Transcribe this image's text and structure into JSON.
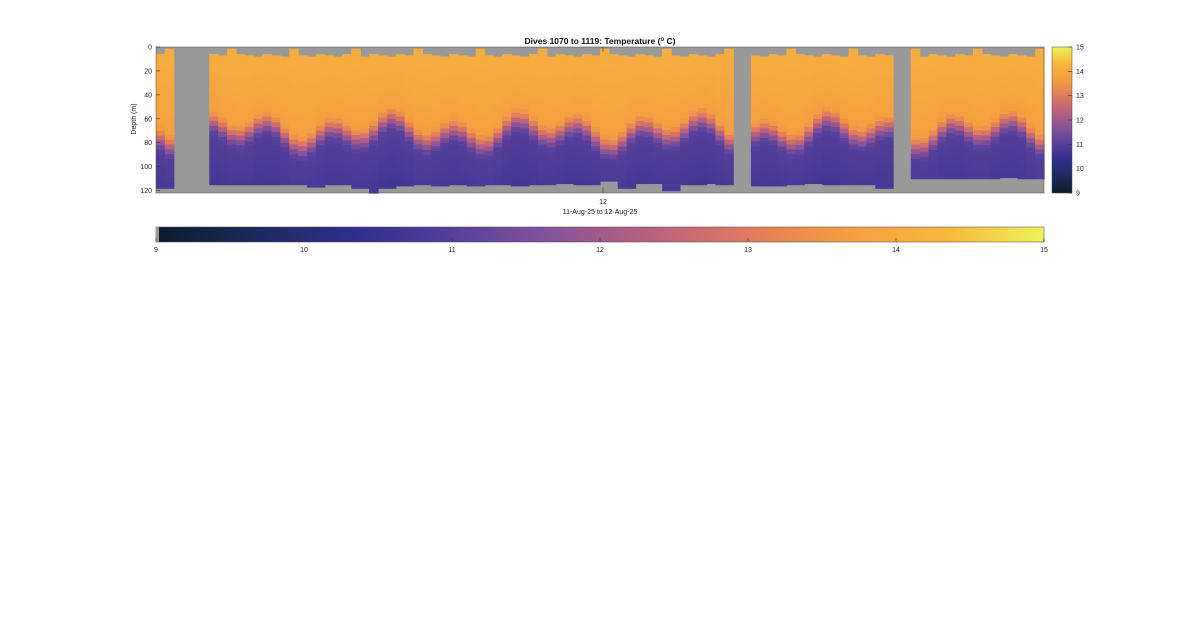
{
  "chart_data": {
    "type": "heatmap",
    "title_main": "Dives 1070 to 1119: Temperature (",
    "title_sup": "o",
    "title_end": " C)",
    "ylabel": "Depth (m)",
    "xlabel": "11-Aug-25 to 12-Aug-25",
    "x_tick_labels": [
      "12"
    ],
    "y_ticks": [
      0,
      20,
      40,
      60,
      80,
      100,
      120
    ],
    "ylim": [
      0,
      122
    ],
    "y_reversed": true,
    "colorbar_range": [
      9,
      15
    ],
    "colorbar_ticks": [
      9,
      10,
      11,
      12,
      13,
      14,
      15
    ],
    "colormap": [
      "#0b1d2e",
      "#1b2a5a",
      "#2f2e8c",
      "#553f9a",
      "#87539a",
      "#b9617e",
      "#e07a5f",
      "#f59e42",
      "#f7b83d",
      "#eef25a"
    ],
    "missing_color": "#999999",
    "num_profiles": 100,
    "surface_temperature_c": 14.1,
    "bottom_temperature_c": 10.7,
    "thermocline_depth_m": [
      60,
      85
    ],
    "data_gaps_profiles": [
      [
        2,
        5
      ],
      [
        65,
        66
      ],
      [
        83,
        84
      ]
    ],
    "profile_max_depth_m": [
      118,
      118,
      118,
      122,
      122,
      122,
      115,
      115,
      115,
      115,
      115,
      115,
      115,
      115,
      115,
      115,
      115,
      117,
      117,
      115,
      115,
      115,
      118,
      118,
      122,
      118,
      118,
      116,
      116,
      115,
      115,
      116,
      116,
      115,
      115,
      116,
      116,
      115,
      115,
      115,
      116,
      116,
      115,
      115,
      115,
      114,
      114,
      115,
      115,
      115,
      112,
      112,
      118,
      118,
      114,
      114,
      114,
      120,
      120,
      115,
      115,
      115,
      114,
      115,
      115,
      122,
      122,
      116,
      116,
      116,
      116,
      115,
      115,
      114,
      114,
      115,
      115,
      115,
      115,
      115,
      115,
      118,
      118,
      122,
      122,
      110,
      110,
      110,
      110,
      110,
      110,
      110,
      110,
      110,
      110,
      109,
      109,
      110,
      110,
      110
    ]
  }
}
